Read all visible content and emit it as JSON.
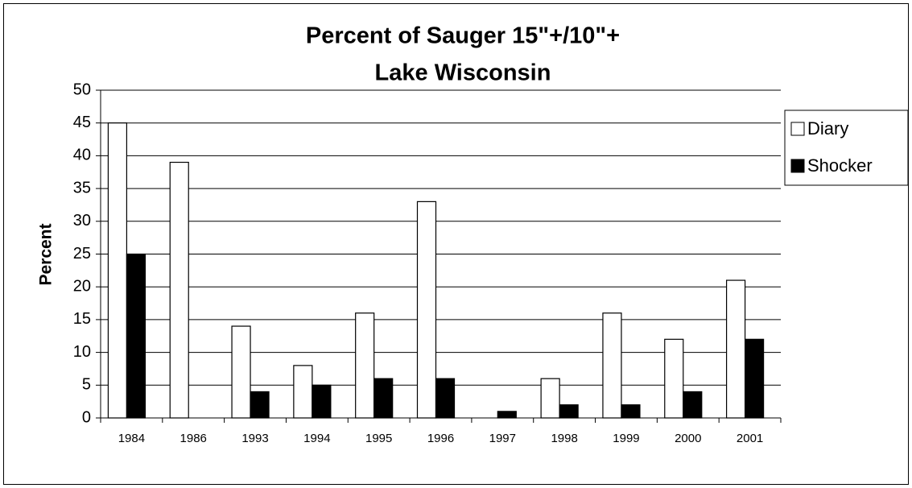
{
  "chart_data": {
    "type": "bar",
    "title": [
      "Percent of Sauger 15\"+/10\"+",
      "Lake Wisconsin"
    ],
    "y_label": "Percent",
    "categories": [
      "1984",
      "1986",
      "1993",
      "1994",
      "1995",
      "1996",
      "1997",
      "1998",
      "1999",
      "2000",
      "2001"
    ],
    "series": [
      {
        "name": "Diary",
        "color": "#ffffff",
        "values": [
          45,
          39,
          14,
          8,
          16,
          33,
          0,
          6,
          16,
          12,
          21
        ]
      },
      {
        "name": "Shocker",
        "color": "#000000",
        "values": [
          25,
          0,
          4,
          5,
          6,
          6,
          1,
          2,
          2,
          4,
          12
        ]
      }
    ],
    "ylim": [
      0,
      50
    ],
    "yticks": [
      0,
      5,
      10,
      15,
      20,
      25,
      30,
      35,
      40,
      45,
      50
    ],
    "grid": true,
    "legend": "right"
  }
}
